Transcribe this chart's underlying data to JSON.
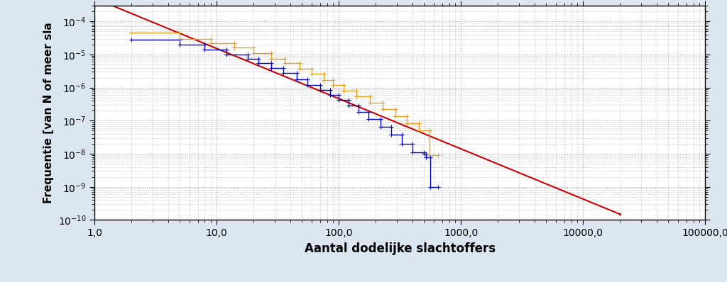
{
  "title": "",
  "xlabel": "Aantal dodelijke slachtoffers",
  "ylabel": "Frequentie [van N of meer sla",
  "xlim": [
    1.0,
    100000.0
  ],
  "ylim": [
    1e-10,
    0.0003
  ],
  "background_color": "#dce6f1",
  "plot_bg_color": "#ffffff",
  "grid_color": "#aaaaaa",
  "blue_color": "#0000cc",
  "orange_color": "#e8a020",
  "red_color": "#cc0000",
  "blue_steps": [
    [
      2,
      2.8e-05
    ],
    [
      5,
      2.8e-05
    ],
    [
      5,
      2e-05
    ],
    [
      8,
      2e-05
    ],
    [
      8,
      1.4e-05
    ],
    [
      12,
      1.4e-05
    ],
    [
      12,
      1e-05
    ],
    [
      18,
      1e-05
    ],
    [
      18,
      7.5e-06
    ],
    [
      22,
      7.5e-06
    ],
    [
      22,
      5.5e-06
    ],
    [
      28,
      5.5e-06
    ],
    [
      28,
      4e-06
    ],
    [
      35,
      4e-06
    ],
    [
      35,
      2.8e-06
    ],
    [
      45,
      2.8e-06
    ],
    [
      45,
      1.8e-06
    ],
    [
      55,
      1.8e-06
    ],
    [
      55,
      1.2e-06
    ],
    [
      70,
      1.2e-06
    ],
    [
      70,
      8.5e-07
    ],
    [
      85,
      8.5e-07
    ],
    [
      85,
      6e-07
    ],
    [
      100,
      6e-07
    ],
    [
      100,
      4.2e-07
    ],
    [
      120,
      4.2e-07
    ],
    [
      120,
      2.8e-07
    ],
    [
      145,
      2.8e-07
    ],
    [
      145,
      1.8e-07
    ],
    [
      175,
      1.8e-07
    ],
    [
      175,
      1.1e-07
    ],
    [
      220,
      1.1e-07
    ],
    [
      220,
      6.5e-08
    ],
    [
      270,
      6.5e-08
    ],
    [
      270,
      3.8e-08
    ],
    [
      330,
      3.8e-08
    ],
    [
      330,
      2e-08
    ],
    [
      400,
      2e-08
    ],
    [
      400,
      1.1e-08
    ],
    [
      500,
      1.1e-08
    ],
    [
      500,
      1e-08
    ],
    [
      520,
      1e-08
    ],
    [
      520,
      8e-09
    ],
    [
      560,
      8e-09
    ],
    [
      560,
      1e-09
    ],
    [
      650,
      1e-09
    ]
  ],
  "orange_steps": [
    [
      2,
      4.5e-05
    ],
    [
      5,
      4.5e-05
    ],
    [
      5,
      3e-05
    ],
    [
      9,
      3e-05
    ],
    [
      9,
      2.2e-05
    ],
    [
      14,
      2.2e-05
    ],
    [
      14,
      1.6e-05
    ],
    [
      20,
      1.6e-05
    ],
    [
      20,
      1.1e-05
    ],
    [
      28,
      1.1e-05
    ],
    [
      28,
      7.5e-06
    ],
    [
      36,
      7.5e-06
    ],
    [
      36,
      5.5e-06
    ],
    [
      48,
      5.5e-06
    ],
    [
      48,
      3.8e-06
    ],
    [
      60,
      3.8e-06
    ],
    [
      60,
      2.6e-06
    ],
    [
      75,
      2.6e-06
    ],
    [
      75,
      1.7e-06
    ],
    [
      90,
      1.7e-06
    ],
    [
      90,
      1.2e-06
    ],
    [
      110,
      1.2e-06
    ],
    [
      110,
      8e-07
    ],
    [
      140,
      8e-07
    ],
    [
      140,
      5.5e-07
    ],
    [
      180,
      5.5e-07
    ],
    [
      180,
      3.5e-07
    ],
    [
      230,
      3.5e-07
    ],
    [
      230,
      2.2e-07
    ],
    [
      290,
      2.2e-07
    ],
    [
      290,
      1.4e-07
    ],
    [
      360,
      1.4e-07
    ],
    [
      360,
      8.5e-08
    ],
    [
      450,
      8.5e-08
    ],
    [
      450,
      5e-08
    ],
    [
      550,
      5e-08
    ],
    [
      550,
      9e-09
    ],
    [
      650,
      9e-09
    ]
  ],
  "red_line_x": [
    1.0,
    20000.0
  ],
  "red_line_y": [
    0.0005,
    1.5e-10
  ],
  "xlabel_fontsize": 12,
  "ylabel_fontsize": 11,
  "tick_fontsize": 10,
  "xtick_labels": [
    "1,0",
    "10,0",
    "100,0",
    "1000,0",
    "10000,0",
    "100000,0"
  ],
  "xtick_values": [
    1,
    10,
    100,
    1000,
    10000,
    100000
  ]
}
